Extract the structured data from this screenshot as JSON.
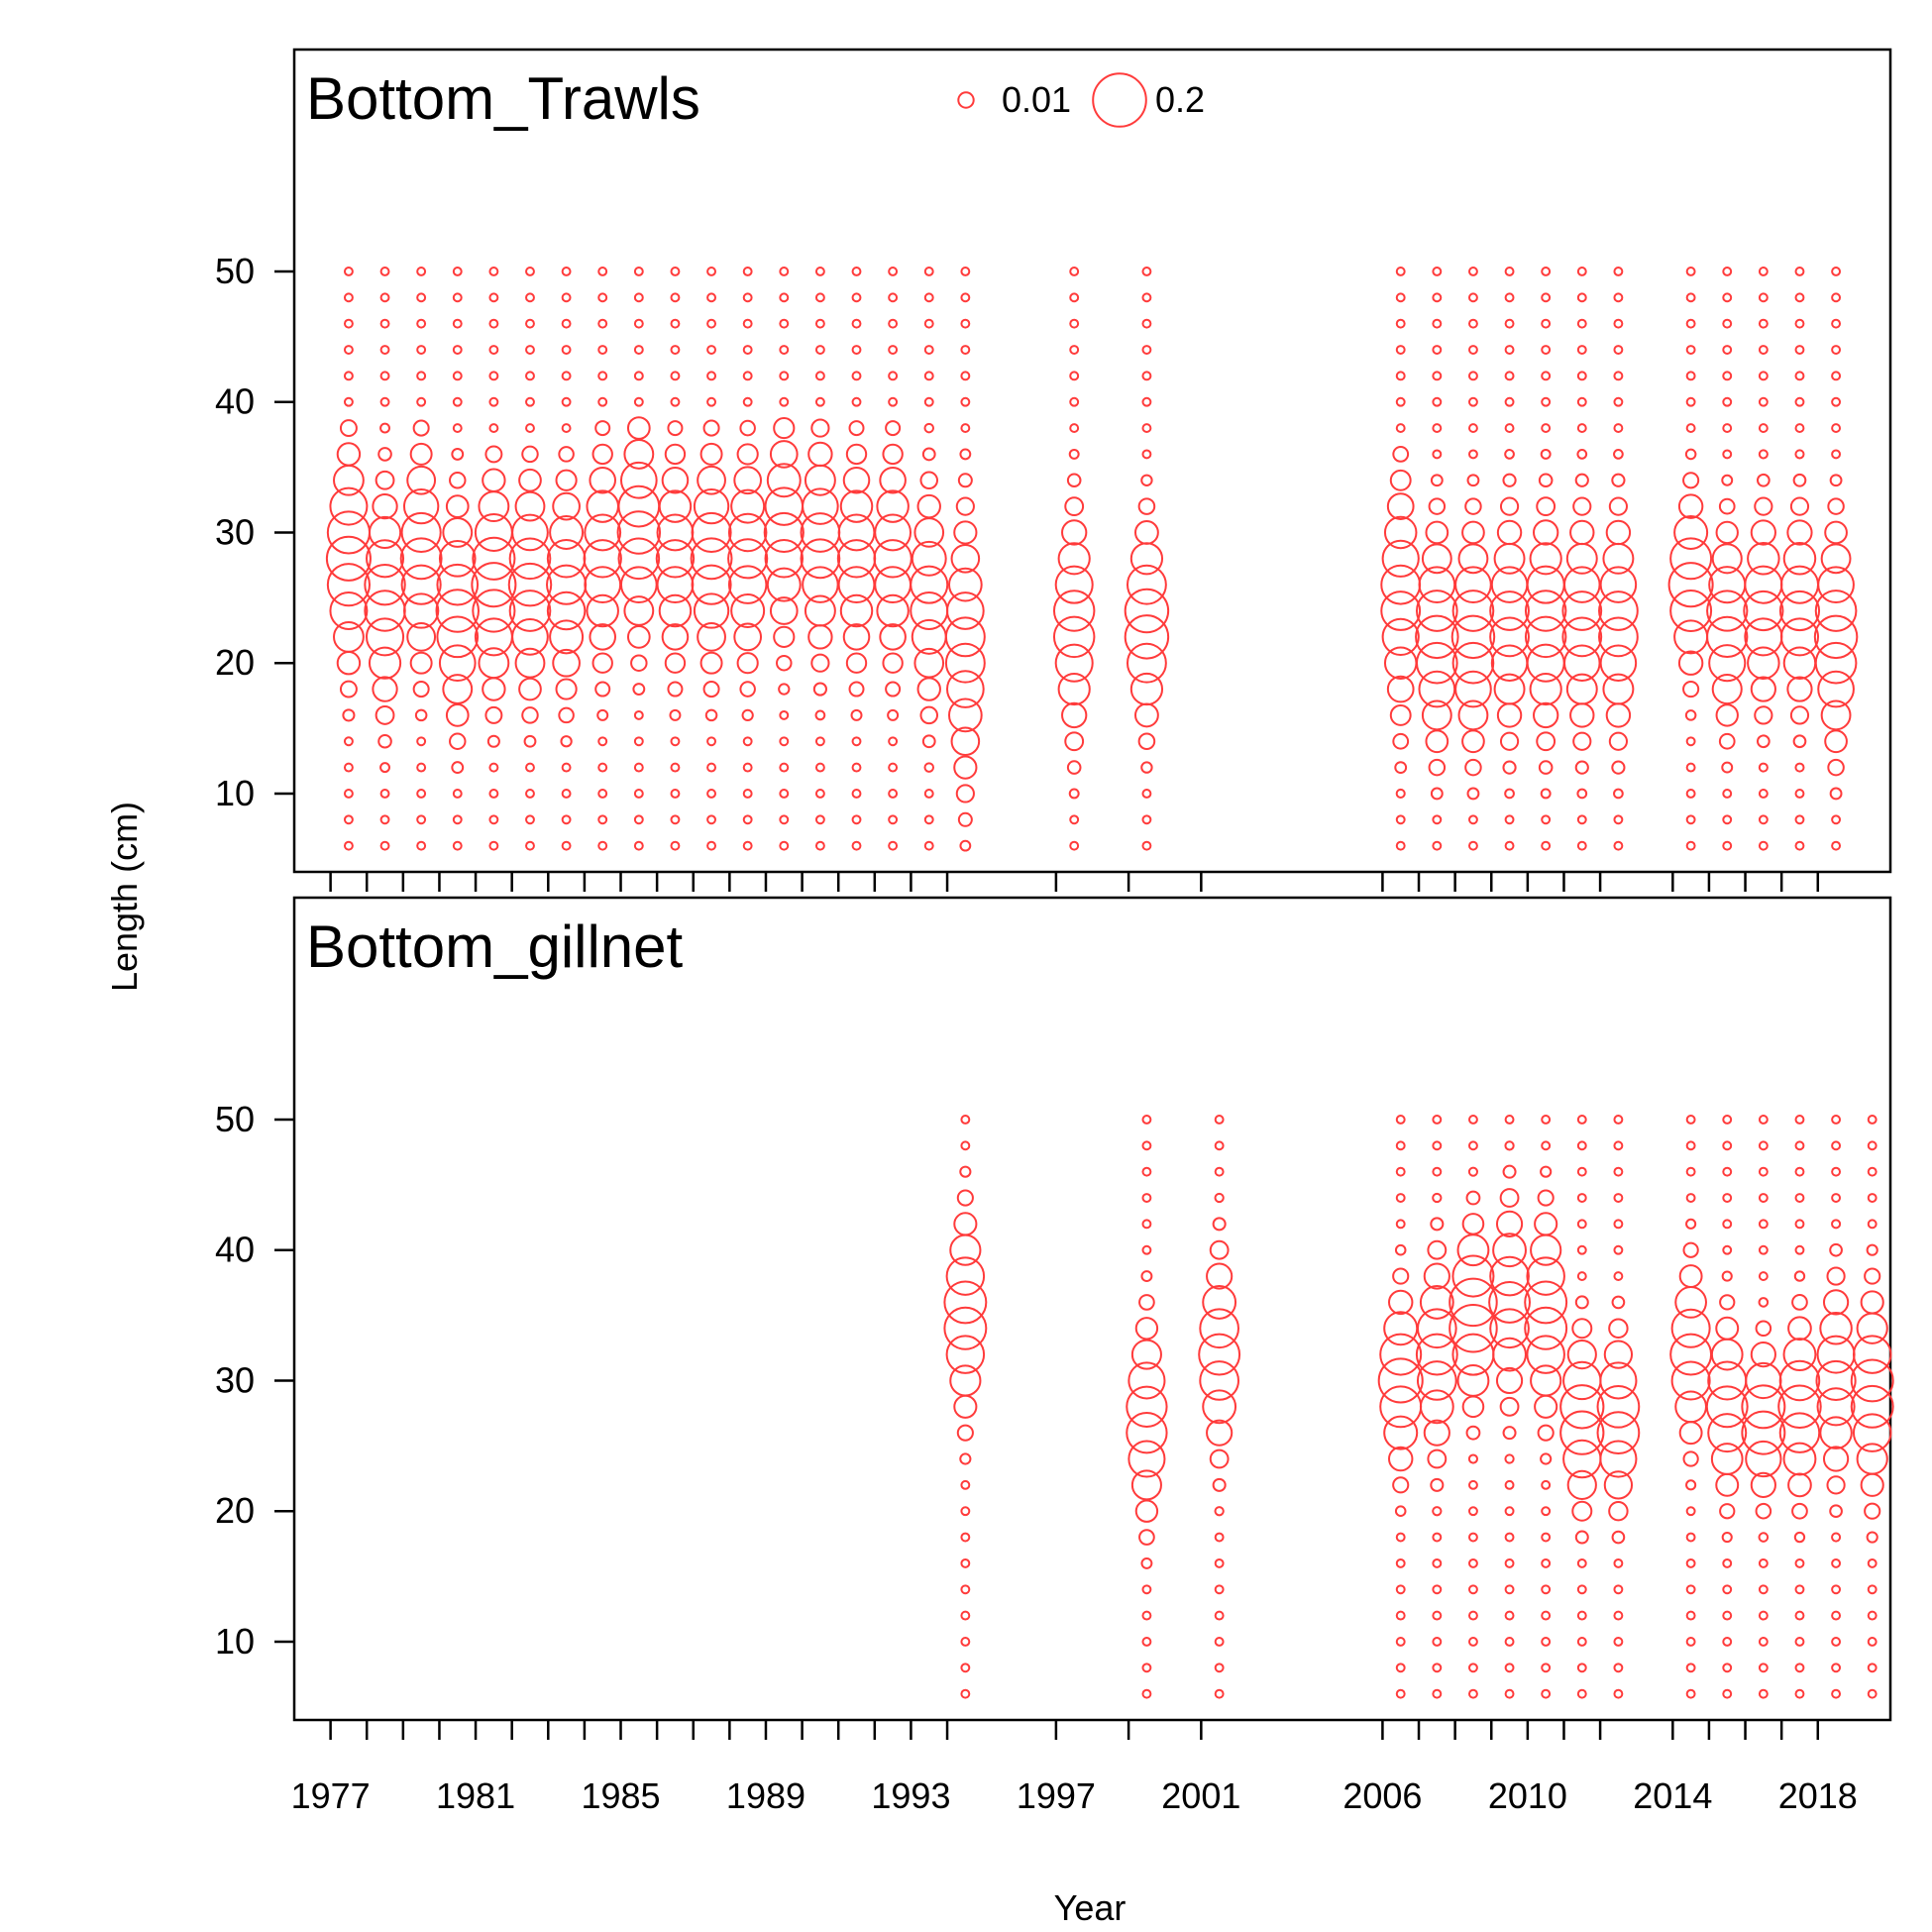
{
  "x_axis": {
    "label": "Year",
    "tick_labels": [
      "1977",
      "1981",
      "1985",
      "1989",
      "1993",
      "1997",
      "2001",
      "2006",
      "2010",
      "2014",
      "2018"
    ]
  },
  "y_axis": {
    "label": "Length (cm)",
    "tick_labels": [
      "10",
      "20",
      "30",
      "40",
      "50"
    ]
  },
  "legend": {
    "placement": "top-center",
    "entries": [
      {
        "label": "0.01",
        "value": 0.01
      },
      {
        "label": "0.2",
        "value": 0.2
      }
    ]
  },
  "colors": {
    "bubble": "#ff3b3b",
    "axis": "#000000"
  },
  "chart_data": {
    "type": "scatter",
    "encoding": "bubble",
    "x_range": [
      1976,
      2020
    ],
    "y_range": [
      4,
      67
    ],
    "length_bins": [
      6,
      8,
      10,
      12,
      14,
      16,
      18,
      20,
      22,
      24,
      26,
      28,
      30,
      32,
      34,
      36,
      38,
      40,
      42,
      44,
      46,
      48,
      50
    ],
    "year_ticks": [
      1977,
      1978,
      1979,
      1980,
      1981,
      1982,
      1983,
      1984,
      1985,
      1986,
      1987,
      1988,
      1989,
      1990,
      1991,
      1992,
      1993,
      1994,
      1997,
      1999,
      2001,
      2006,
      2007,
      2008,
      2009,
      2010,
      2011,
      2012,
      2014,
      2015,
      2016,
      2017,
      2018
    ],
    "panels": [
      {
        "title": "Bottom_Trawls",
        "years": [
          {
            "year": 1977.5,
            "peak_length": 28,
            "spread": 4.5,
            "peak": 0.13,
            "max_length": 38
          },
          {
            "year": 1978.5,
            "peak_length": 25,
            "spread": 4.5,
            "peak": 0.11,
            "max_length": 38
          },
          {
            "year": 1979.5,
            "peak_length": 28,
            "spread": 4.5,
            "peak": 0.11,
            "max_length": 38
          },
          {
            "year": 1980.5,
            "peak_length": 24,
            "spread": 4.5,
            "peak": 0.12,
            "max_length": 36
          },
          {
            "year": 1981.5,
            "peak_length": 26,
            "spread": 4.5,
            "peak": 0.13,
            "max_length": 36
          },
          {
            "year": 1982.5,
            "peak_length": 26,
            "spread": 4.5,
            "peak": 0.12,
            "max_length": 36
          },
          {
            "year": 1983.5,
            "peak_length": 26,
            "spread": 4.5,
            "peak": 0.1,
            "max_length": 36
          },
          {
            "year": 1984.5,
            "peak_length": 28,
            "spread": 4.5,
            "peak": 0.09,
            "max_length": 38
          },
          {
            "year": 1985.5,
            "peak_length": 30,
            "spread": 4.5,
            "peak": 0.12,
            "max_length": 38
          },
          {
            "year": 1986.5,
            "peak_length": 28,
            "spread": 4.5,
            "peak": 0.09,
            "max_length": 38
          },
          {
            "year": 1987.5,
            "peak_length": 28,
            "spread": 4.5,
            "peak": 0.11,
            "max_length": 38
          },
          {
            "year": 1988.5,
            "peak_length": 28,
            "spread": 4.5,
            "peak": 0.1,
            "max_length": 38
          },
          {
            "year": 1989.5,
            "peak_length": 30,
            "spread": 4.5,
            "peak": 0.1,
            "max_length": 38
          },
          {
            "year": 1990.5,
            "peak_length": 29,
            "spread": 4.5,
            "peak": 0.1,
            "max_length": 38
          },
          {
            "year": 1991.5,
            "peak_length": 28,
            "spread": 4.5,
            "peak": 0.09,
            "max_length": 38
          },
          {
            "year": 1992.5,
            "peak_length": 28,
            "spread": 4.5,
            "peak": 0.09,
            "max_length": 38
          },
          {
            "year": 1993.5,
            "peak_length": 25,
            "spread": 4.5,
            "peak": 0.09,
            "max_length": 38
          },
          {
            "year": 1994.5,
            "peak_length": 21,
            "spread": 5.5,
            "peak": 0.1,
            "max_length": 38
          },
          {
            "year": 1997.5,
            "peak_length": 23,
            "spread": 4.5,
            "peak": 0.11,
            "max_length": 38
          },
          {
            "year": 1999.5,
            "peak_length": 23,
            "spread": 4.0,
            "peak": 0.13,
            "max_length": 36
          },
          {
            "year": 2006.5,
            "peak_length": 25,
            "spread": 5.0,
            "peak": 0.1,
            "max_length": 36
          },
          {
            "year": 2007.5,
            "peak_length": 22,
            "spread": 4.5,
            "peak": 0.12,
            "max_length": 38
          },
          {
            "year": 2008.5,
            "peak_length": 22,
            "spread": 4.5,
            "peak": 0.12,
            "max_length": 40
          },
          {
            "year": 2009.5,
            "peak_length": 23,
            "spread": 4.5,
            "peak": 0.1,
            "max_length": 40
          },
          {
            "year": 2010.5,
            "peak_length": 23,
            "spread": 4.5,
            "peak": 0.11,
            "max_length": 40
          },
          {
            "year": 2011.5,
            "peak_length": 23,
            "spread": 4.5,
            "peak": 0.1,
            "max_length": 40
          },
          {
            "year": 2012.5,
            "peak_length": 23,
            "spread": 4.5,
            "peak": 0.1,
            "max_length": 42
          },
          {
            "year": 2014.5,
            "peak_length": 26,
            "spread": 3.5,
            "peak": 0.13,
            "max_length": 38
          },
          {
            "year": 2015.5,
            "peak_length": 23,
            "spread": 4.0,
            "peak": 0.11,
            "max_length": 40
          },
          {
            "year": 2016.5,
            "peak_length": 24,
            "spread": 4.0,
            "peak": 0.1,
            "max_length": 42
          },
          {
            "year": 2017.5,
            "peak_length": 24,
            "spread": 4.0,
            "peak": 0.1,
            "max_length": 40
          },
          {
            "year": 2018.5,
            "peak_length": 22,
            "spread": 4.5,
            "peak": 0.12,
            "max_length": 40
          }
        ]
      },
      {
        "title": "Bottom_gillnet",
        "years": [
          {
            "year": 1994.5,
            "peak_length": 35,
            "spread": 4.0,
            "peak": 0.12,
            "max_length": 50
          },
          {
            "year": 1999.5,
            "peak_length": 27,
            "spread": 4.0,
            "peak": 0.11,
            "max_length": 50
          },
          {
            "year": 2001.5,
            "peak_length": 32,
            "spread": 4.0,
            "peak": 0.11,
            "max_length": 50
          },
          {
            "year": 2006.5,
            "peak_length": 30,
            "spread": 3.5,
            "peak": 0.13,
            "max_length": 50
          },
          {
            "year": 2007.5,
            "peak_length": 32,
            "spread": 4.0,
            "peak": 0.11,
            "max_length": 50
          },
          {
            "year": 2008.5,
            "peak_length": 35,
            "spread": 3.5,
            "peak": 0.16,
            "max_length": 50
          },
          {
            "year": 2009.5,
            "peak_length": 36,
            "spread": 4.0,
            "peak": 0.11,
            "max_length": 50
          },
          {
            "year": 2010.5,
            "peak_length": 35,
            "spread": 4.0,
            "peak": 0.12,
            "max_length": 50
          },
          {
            "year": 2011.5,
            "peak_length": 27,
            "spread": 3.5,
            "peak": 0.13,
            "max_length": 50
          },
          {
            "year": 2012.5,
            "peak_length": 27,
            "spread": 3.5,
            "peak": 0.12,
            "max_length": 50
          },
          {
            "year": 2014.5,
            "peak_length": 32,
            "spread": 3.5,
            "peak": 0.11,
            "max_length": 50
          },
          {
            "year": 2015.5,
            "peak_length": 28,
            "spread": 3.5,
            "peak": 0.11,
            "max_length": 50
          },
          {
            "year": 2016.5,
            "peak_length": 27,
            "spread": 3.0,
            "peak": 0.13,
            "max_length": 50
          },
          {
            "year": 2017.5,
            "peak_length": 28,
            "spread": 3.5,
            "peak": 0.12,
            "max_length": 50
          },
          {
            "year": 2018.5,
            "peak_length": 30,
            "spread": 4.0,
            "peak": 0.1,
            "max_length": 50
          },
          {
            "year": 2019.5,
            "peak_length": 29,
            "spread": 4.0,
            "peak": 0.12,
            "max_length": 50
          }
        ]
      }
    ]
  }
}
